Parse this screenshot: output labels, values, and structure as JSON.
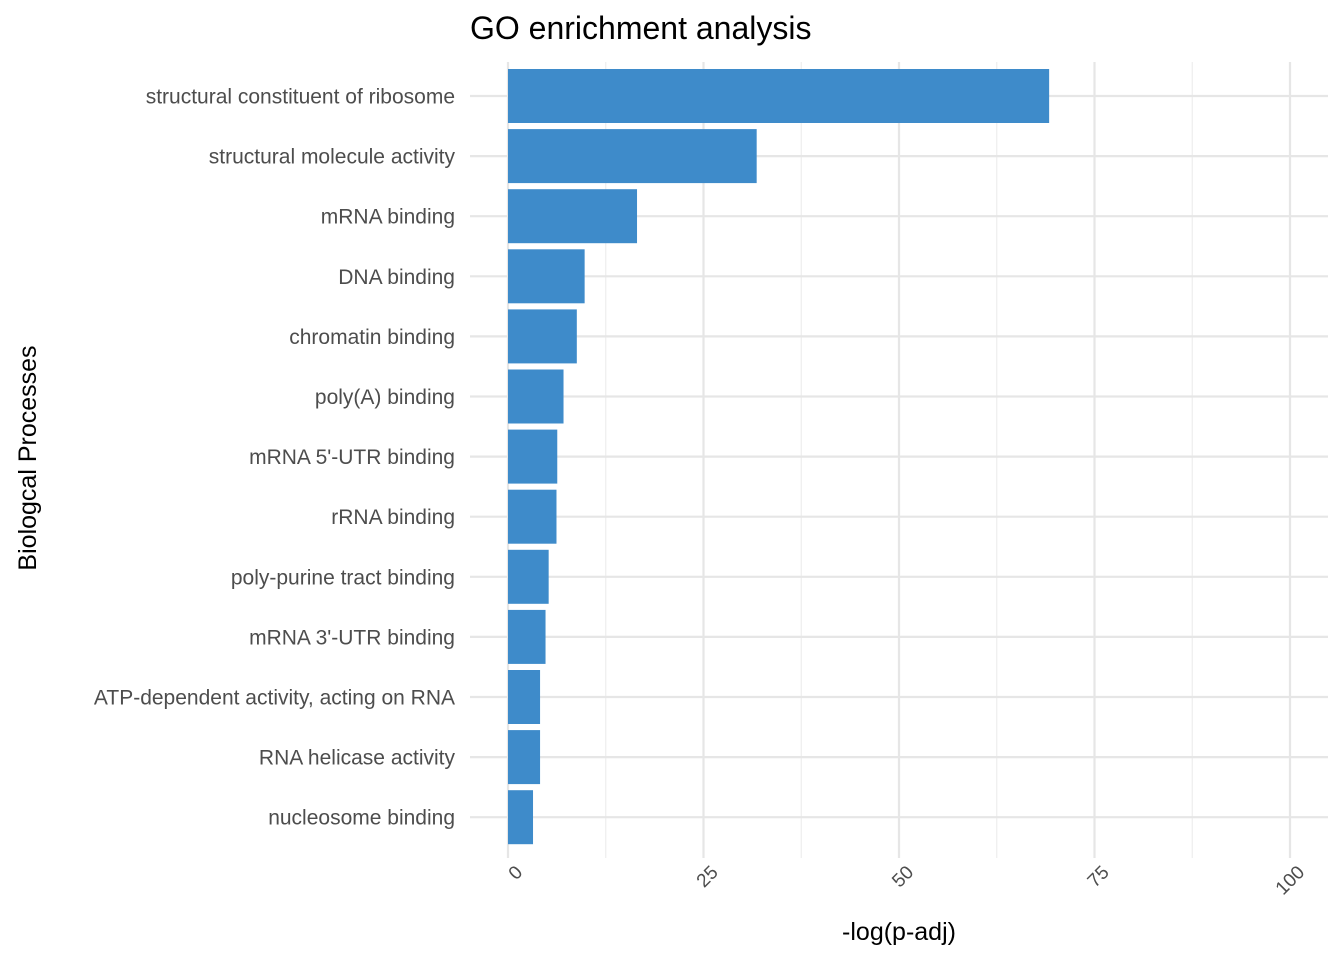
{
  "chart_data": {
    "type": "bar",
    "orientation": "horizontal",
    "title": "GO enrichment analysis",
    "xlabel": "-log(p-adj)",
    "ylabel": "Biologcal Processes",
    "xlim": [
      0,
      100
    ],
    "xticks": [
      0,
      25,
      50,
      75,
      100
    ],
    "xtick_labels": [
      "0",
      "25",
      "50",
      "75",
      "100"
    ],
    "grid": true,
    "bar_color": "#3e8bca",
    "categories": [
      "structural constituent of ribosome",
      "structural molecule activity",
      "mRNA binding",
      "DNA binding",
      "chromatin binding",
      "poly(A) binding",
      "mRNA 5'-UTR binding",
      "rRNA binding",
      "poly-purine tract binding",
      "mRNA 3'-UTR binding",
      "ATP-dependent activity, acting on RNA",
      "RNA helicase activity",
      "nucleosome binding"
    ],
    "values": [
      69.2,
      31.8,
      16.5,
      9.8,
      8.8,
      7.1,
      6.3,
      6.2,
      5.2,
      4.8,
      4.1,
      4.1,
      3.2
    ]
  }
}
